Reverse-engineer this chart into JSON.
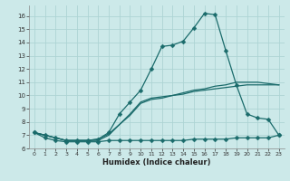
{
  "xlabel": "Humidex (Indice chaleur)",
  "xlim": [
    -0.5,
    23.5
  ],
  "ylim": [
    6.0,
    16.8
  ],
  "yticks": [
    6,
    7,
    8,
    9,
    10,
    11,
    12,
    13,
    14,
    15,
    16
  ],
  "xticks": [
    0,
    1,
    2,
    3,
    4,
    5,
    6,
    7,
    8,
    9,
    10,
    11,
    12,
    13,
    14,
    15,
    16,
    17,
    18,
    19,
    20,
    21,
    22,
    23
  ],
  "bg_color": "#cce9e9",
  "line_color": "#1a6b6b",
  "grid_color": "#add4d4",
  "lines": [
    {
      "x": [
        0,
        1,
        2,
        3,
        4,
        5,
        6,
        7,
        8,
        9,
        10,
        11,
        12,
        13,
        14,
        15,
        16,
        17,
        18,
        19,
        20,
        21,
        22,
        23
      ],
      "y": [
        7.2,
        6.8,
        6.6,
        6.5,
        6.5,
        6.5,
        6.5,
        6.6,
        6.6,
        6.6,
        6.6,
        6.6,
        6.6,
        6.6,
        6.6,
        6.7,
        6.7,
        6.7,
        6.7,
        6.8,
        6.8,
        6.8,
        6.8,
        7.0
      ],
      "marker": true,
      "markersize": 2.5
    },
    {
      "x": [
        0,
        1,
        2,
        3,
        4,
        5,
        6,
        7,
        8,
        9,
        10,
        11,
        12,
        13,
        14,
        15,
        16,
        17,
        18,
        19,
        20,
        21,
        22,
        23
      ],
      "y": [
        7.2,
        7.0,
        6.8,
        6.6,
        6.6,
        6.6,
        6.7,
        7.1,
        7.8,
        8.5,
        9.4,
        9.7,
        9.8,
        10.0,
        10.1,
        10.3,
        10.4,
        10.5,
        10.6,
        10.7,
        10.8,
        10.8,
        10.8,
        10.8
      ],
      "marker": false,
      "markersize": 0
    },
    {
      "x": [
        0,
        1,
        2,
        3,
        4,
        5,
        6,
        7,
        8,
        9,
        10,
        11,
        12,
        13,
        14,
        15,
        16,
        17,
        18,
        19,
        20,
        21,
        22,
        23
      ],
      "y": [
        7.2,
        7.0,
        6.8,
        6.6,
        6.6,
        6.6,
        6.6,
        7.0,
        7.8,
        8.6,
        9.5,
        9.8,
        9.9,
        10.0,
        10.2,
        10.4,
        10.5,
        10.7,
        10.8,
        11.0,
        11.0,
        11.0,
        10.9,
        10.8
      ],
      "marker": false,
      "markersize": 0
    },
    {
      "x": [
        0,
        1,
        2,
        3,
        4,
        5,
        6,
        7,
        8,
        9,
        10,
        11,
        12,
        13,
        14,
        15,
        16,
        17,
        18,
        19,
        20,
        21,
        22,
        23
      ],
      "y": [
        7.2,
        7.0,
        6.8,
        6.6,
        6.6,
        6.6,
        6.7,
        7.2,
        8.6,
        9.5,
        10.4,
        12.0,
        13.7,
        13.8,
        14.1,
        15.1,
        16.2,
        16.1,
        13.4,
        10.8,
        8.6,
        8.3,
        8.2,
        7.0
      ],
      "marker": true,
      "markersize": 2.5
    }
  ]
}
